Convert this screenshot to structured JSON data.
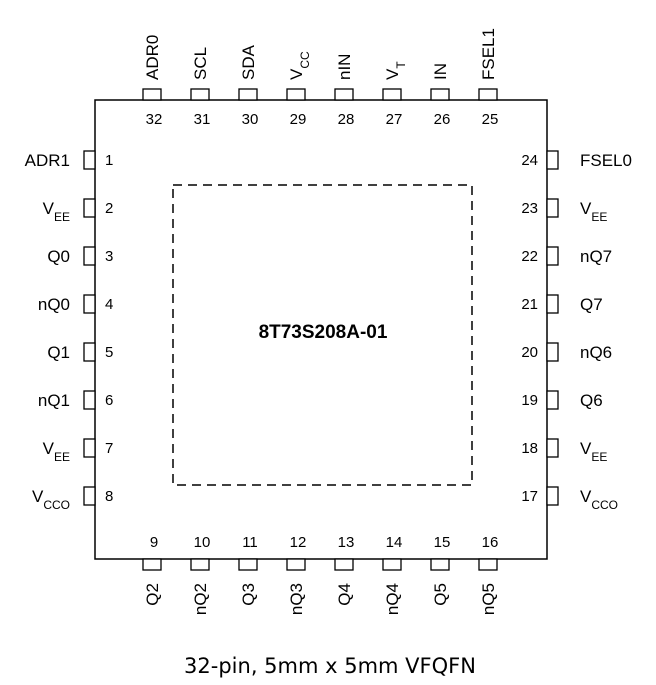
{
  "part_number": "8T73S208A-01",
  "caption": "32-pin, 5mm x 5mm VFQFN",
  "pins": {
    "left": [
      {
        "num": "1",
        "name": "ADR1",
        "sub": ""
      },
      {
        "num": "2",
        "name": "V",
        "sub": "EE"
      },
      {
        "num": "3",
        "name": "Q0",
        "sub": ""
      },
      {
        "num": "4",
        "name": "nQ0",
        "sub": ""
      },
      {
        "num": "5",
        "name": "Q1",
        "sub": ""
      },
      {
        "num": "6",
        "name": "nQ1",
        "sub": ""
      },
      {
        "num": "7",
        "name": "V",
        "sub": "EE"
      },
      {
        "num": "8",
        "name": "V",
        "sub": "CCO"
      }
    ],
    "bottom": [
      {
        "num": "9",
        "name": "Q2",
        "sub": ""
      },
      {
        "num": "10",
        "name": "nQ2",
        "sub": ""
      },
      {
        "num": "11",
        "name": "Q3",
        "sub": ""
      },
      {
        "num": "12",
        "name": "nQ3",
        "sub": ""
      },
      {
        "num": "13",
        "name": "Q4",
        "sub": ""
      },
      {
        "num": "14",
        "name": "nQ4",
        "sub": ""
      },
      {
        "num": "15",
        "name": "Q5",
        "sub": ""
      },
      {
        "num": "16",
        "name": "nQ5",
        "sub": ""
      }
    ],
    "right": [
      {
        "num": "24",
        "name": "FSEL0",
        "sub": ""
      },
      {
        "num": "23",
        "name": "V",
        "sub": "EE"
      },
      {
        "num": "22",
        "name": "nQ7",
        "sub": ""
      },
      {
        "num": "21",
        "name": "Q7",
        "sub": ""
      },
      {
        "num": "20",
        "name": "nQ6",
        "sub": ""
      },
      {
        "num": "19",
        "name": "Q6",
        "sub": ""
      },
      {
        "num": "18",
        "name": "V",
        "sub": "EE"
      },
      {
        "num": "17",
        "name": "V",
        "sub": "CCO"
      }
    ],
    "top": [
      {
        "num": "32",
        "name": "ADR0",
        "sub": ""
      },
      {
        "num": "31",
        "name": "SCL",
        "sub": ""
      },
      {
        "num": "30",
        "name": "SDA",
        "sub": ""
      },
      {
        "num": "29",
        "name": "V",
        "sub": "CC"
      },
      {
        "num": "28",
        "name": "nIN",
        "sub": ""
      },
      {
        "num": "27",
        "name": "V",
        "sub": "T"
      },
      {
        "num": "26",
        "name": "IN",
        "sub": ""
      },
      {
        "num": "25",
        "name": "FSEL1",
        "sub": ""
      }
    ]
  }
}
